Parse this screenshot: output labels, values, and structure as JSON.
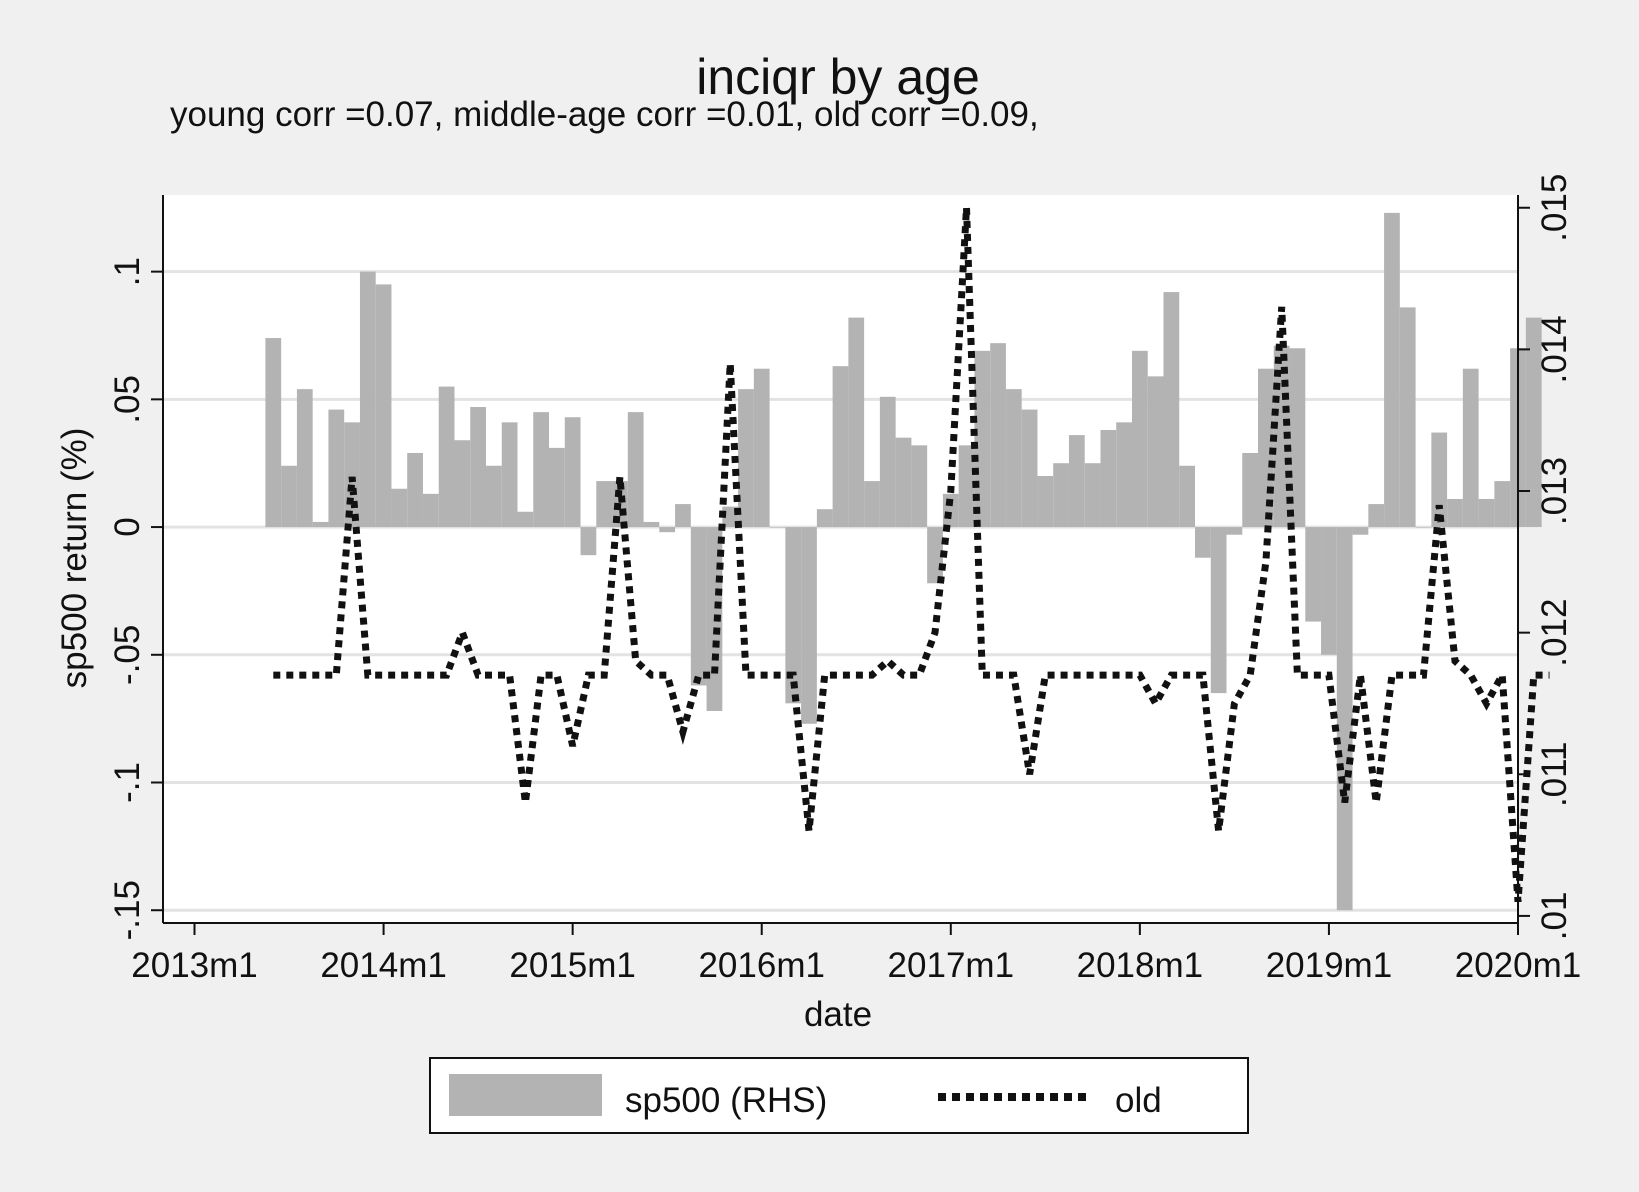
{
  "chart_data": {
    "type": "bar+line",
    "title": "inciqr by age",
    "subtitle": "young corr =0.07, middle-age corr =0.01, old corr =0.09,",
    "xlabel": "date",
    "ylabel_left": "sp500 return (%)",
    "ylabel_right": "",
    "x_start": "2013m6",
    "x_end": "2020m1",
    "x_range": [
      "2012m11",
      "2020m1"
    ],
    "x_ticks": [
      "2013m1",
      "2014m1",
      "2015m1",
      "2016m1",
      "2017m1",
      "2018m1",
      "2019m1",
      "2020m1"
    ],
    "y_left_range": [
      -0.155,
      0.13
    ],
    "y_left_ticks": [
      "-.15",
      "-.1",
      "-.05",
      "0",
      ".05",
      ".1"
    ],
    "y_left_tick_values": [
      -0.15,
      -0.1,
      -0.05,
      0,
      0.05,
      0.1
    ],
    "y_right_range": [
      0.00995,
      0.01509
    ],
    "y_right_ticks": [
      ".01",
      ".011",
      ".012",
      ".013",
      ".014",
      ".015"
    ],
    "y_right_tick_values": [
      0.01,
      0.011,
      0.012,
      0.013,
      0.014,
      0.015
    ],
    "grid": true,
    "legend_position": "bottom",
    "series": [
      {
        "name": "sp500 (RHS)",
        "kind": "bar",
        "axis": "left",
        "color": "#b3b3b3",
        "values": [
          0.074,
          0.024,
          0.054,
          0.002,
          0.046,
          0.041,
          0.1,
          0.095,
          0.015,
          0.029,
          0.013,
          0.055,
          0.034,
          0.047,
          0.024,
          0.041,
          0.006,
          0.045,
          0.031,
          0.043,
          -0.011,
          0.018,
          0.018,
          0.045,
          0.002,
          -0.002,
          0.009,
          -0.062,
          -0.072,
          0.008,
          0.054,
          0.062,
          0.0,
          -0.069,
          -0.077,
          0.007,
          0.063,
          0.082,
          0.018,
          0.051,
          0.035,
          0.032,
          -0.022,
          0.013,
          0.032,
          0.069,
          0.072,
          0.054,
          0.046,
          0.02,
          0.025,
          0.036,
          0.025,
          0.038,
          0.041,
          0.069,
          0.059,
          0.092,
          0.024,
          -0.012,
          -0.065,
          -0.003,
          0.029,
          0.062,
          0.071,
          0.07,
          -0.037,
          -0.05,
          -0.15,
          -0.003,
          0.009,
          0.123,
          0.086,
          0.0,
          0.037,
          0.011,
          0.062,
          0.011,
          0.018,
          0.07,
          0.082
        ]
      },
      {
        "name": "old",
        "kind": "line",
        "style": "dotted",
        "axis": "right",
        "color": "#111111",
        "values": [
          0.0117,
          0.0117,
          0.0117,
          0.0117,
          0.0117,
          0.0131,
          0.0117,
          0.0117,
          0.0117,
          0.0117,
          0.0117,
          0.0117,
          0.012,
          0.0117,
          0.0117,
          0.0117,
          0.0108,
          0.0117,
          0.0117,
          0.0112,
          0.0117,
          0.0117,
          0.0131,
          0.0118,
          0.0117,
          0.0117,
          0.0113,
          0.0117,
          0.0117,
          0.0139,
          0.0117,
          0.0117,
          0.0117,
          0.0117,
          0.0106,
          0.0117,
          0.0117,
          0.0117,
          0.0117,
          0.0118,
          0.0117,
          0.0117,
          0.012,
          0.013,
          0.015,
          0.0117,
          0.0117,
          0.0117,
          0.011,
          0.0117,
          0.0117,
          0.0117,
          0.0117,
          0.0117,
          0.0117,
          0.0117,
          0.0115,
          0.0117,
          0.0117,
          0.0117,
          0.0106,
          0.0115,
          0.0117,
          0.0125,
          0.0143,
          0.0117,
          0.0117,
          0.0117,
          0.0108,
          0.0117,
          0.0108,
          0.0117,
          0.0117,
          0.0117,
          0.0129,
          0.0118,
          0.0117,
          0.0115,
          0.0117,
          0.0101,
          0.0117,
          0.0117
        ]
      }
    ]
  }
}
